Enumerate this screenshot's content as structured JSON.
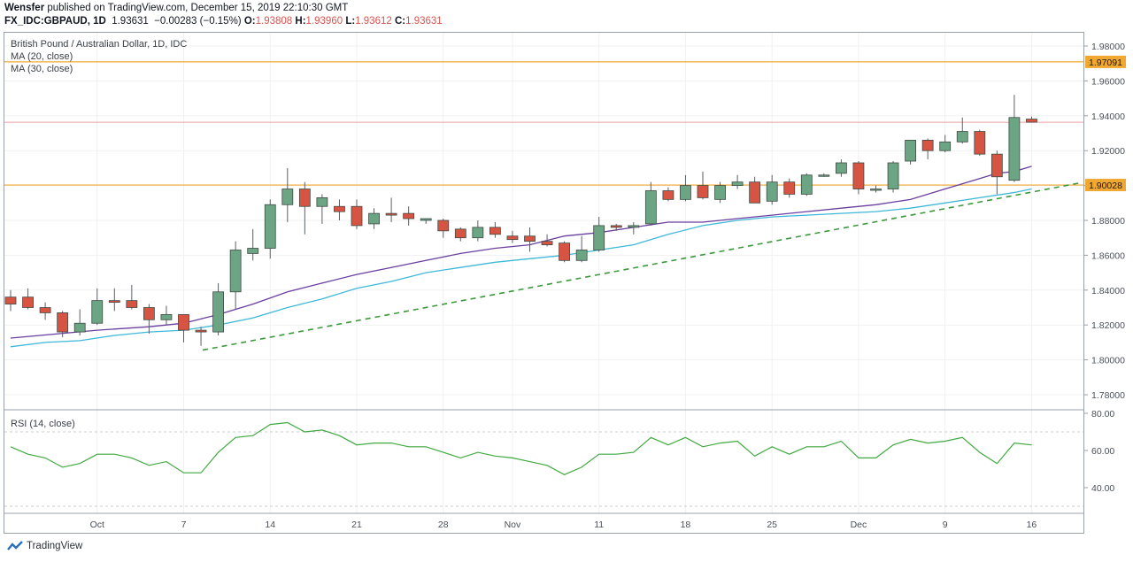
{
  "header": {
    "author": "Wensfer",
    "published": "published on TradingView.com, December 15, 2019 22:10:30 GMT",
    "symbol": "FX_IDC:GBPAUD, 1D",
    "last": "1.93631",
    "change": "−0.00283 (−0.15%)",
    "o_label": "O:",
    "o_value": "1.93808",
    "h_label": "H:",
    "h_value": "1.93960",
    "l_label": "L:",
    "l_value": "1.93612",
    "c_label": "C:",
    "c_value": "1.93631"
  },
  "legend": {
    "title": "British Pound / Australian Dollar, 1D, IDC",
    "ma20": "MA (20, close)",
    "ma30": "MA (30, close)",
    "rsi": "RSI (14, close)"
  },
  "footer": {
    "brand": "TradingView"
  },
  "colors": {
    "up": "#6ba583",
    "down": "#d75442",
    "ma20": "#6a3fa0",
    "ma30": "#3fb8d8",
    "trend": "#3a9a3a",
    "hline": "#f0a830",
    "rsi": "#3fa93f",
    "last": "#e8a0a0"
  },
  "chart_data": [
    {
      "type": "candlestick",
      "title": "British Pound / Australian Dollar, 1D, IDC",
      "x_ticks": [
        "Oct",
        "7",
        "14",
        "21",
        "28",
        "Nov",
        "11",
        "18",
        "25",
        "Dec",
        "9",
        "16"
      ],
      "x_tick_index": [
        5,
        10,
        15,
        20,
        25,
        29,
        34,
        39,
        44,
        49,
        54,
        59
      ],
      "y_ticks": [
        "1.98000",
        "1.96000",
        "1.94000",
        "1.92000",
        "1.90000",
        "1.88000",
        "1.86000",
        "1.84000",
        "1.82000",
        "1.80000",
        "1.78000"
      ],
      "ylim": [
        1.772,
        1.988
      ],
      "horizontal_lines": [
        {
          "value": 1.97091,
          "label": "1.97091"
        },
        {
          "value": 1.90028,
          "label": "1.90028"
        }
      ],
      "last_price_line": 1.93631,
      "trendline": {
        "from": {
          "i": 11.1,
          "v": 1.8056
        },
        "to": {
          "i": 61.8,
          "v": 1.9015
        }
      },
      "ohlc": [
        [
          1.836,
          1.84,
          1.828,
          1.832
        ],
        [
          1.836,
          1.841,
          1.829,
          1.83
        ],
        [
          1.83,
          1.833,
          1.823,
          1.827
        ],
        [
          1.827,
          1.828,
          1.813,
          1.816
        ],
        [
          1.816,
          1.829,
          1.814,
          1.821
        ],
        [
          1.821,
          1.841,
          1.82,
          1.834
        ],
        [
          1.834,
          1.841,
          1.828,
          1.833
        ],
        [
          1.834,
          1.843,
          1.829,
          1.83
        ],
        [
          1.83,
          1.832,
          1.815,
          1.823
        ],
        [
          1.823,
          1.831,
          1.82,
          1.826
        ],
        [
          1.826,
          1.826,
          1.81,
          1.817
        ],
        [
          1.817,
          1.819,
          1.808,
          1.816
        ],
        [
          1.816,
          1.844,
          1.814,
          1.839
        ],
        [
          1.839,
          1.868,
          1.829,
          1.863
        ],
        [
          1.861,
          1.875,
          1.857,
          1.864
        ],
        [
          1.864,
          1.892,
          1.858,
          1.889
        ],
        [
          1.889,
          1.91,
          1.879,
          1.898
        ],
        [
          1.898,
          1.902,
          1.872,
          1.888
        ],
        [
          1.888,
          1.895,
          1.878,
          1.893
        ],
        [
          1.888,
          1.892,
          1.88,
          1.885
        ],
        [
          1.888,
          1.892,
          1.875,
          1.877
        ],
        [
          1.878,
          1.887,
          1.875,
          1.884
        ],
        [
          1.884,
          1.893,
          1.879,
          1.883
        ],
        [
          1.884,
          1.888,
          1.877,
          1.881
        ],
        [
          1.88,
          1.881,
          1.878,
          1.881
        ],
        [
          1.88,
          1.881,
          1.87,
          1.874
        ],
        [
          1.875,
          1.876,
          1.868,
          1.87
        ],
        [
          1.87,
          1.88,
          1.868,
          1.876
        ],
        [
          1.876,
          1.879,
          1.87,
          1.872
        ],
        [
          1.871,
          1.874,
          1.867,
          1.869
        ],
        [
          1.871,
          1.876,
          1.862,
          1.868
        ],
        [
          1.868,
          1.872,
          1.865,
          1.866
        ],
        [
          1.867,
          1.868,
          1.856,
          1.857
        ],
        [
          1.857,
          1.871,
          1.856,
          1.863
        ],
        [
          1.863,
          1.882,
          1.862,
          1.877
        ],
        [
          1.877,
          1.878,
          1.874,
          1.876
        ],
        [
          1.876,
          1.879,
          1.872,
          1.877
        ],
        [
          1.878,
          1.902,
          1.877,
          1.897
        ],
        [
          1.897,
          1.899,
          1.891,
          1.892
        ],
        [
          1.892,
          1.906,
          1.891,
          1.9
        ],
        [
          1.9,
          1.908,
          1.892,
          1.893
        ],
        [
          1.892,
          1.902,
          1.89,
          1.9
        ],
        [
          1.9,
          1.906,
          1.898,
          1.902
        ],
        [
          1.902,
          1.905,
          1.891,
          1.89
        ],
        [
          1.891,
          1.906,
          1.889,
          1.902
        ],
        [
          1.902,
          1.904,
          1.893,
          1.895
        ],
        [
          1.895,
          1.907,
          1.894,
          1.906
        ],
        [
          1.906,
          1.907,
          1.905,
          1.906
        ],
        [
          1.907,
          1.915,
          1.905,
          1.913
        ],
        [
          1.913,
          1.914,
          1.895,
          1.898
        ],
        [
          1.898,
          1.9,
          1.896,
          1.898
        ],
        [
          1.898,
          1.914,
          1.896,
          1.913
        ],
        [
          1.914,
          1.926,
          1.912,
          1.926
        ],
        [
          1.926,
          1.927,
          1.915,
          1.92
        ],
        [
          1.92,
          1.929,
          1.919,
          1.925
        ],
        [
          1.925,
          1.939,
          1.924,
          1.931
        ],
        [
          1.931,
          1.932,
          1.917,
          1.918
        ],
        [
          1.918,
          1.92,
          1.895,
          1.905
        ],
        [
          1.903,
          1.952,
          1.902,
          1.939
        ],
        [
          1.93808,
          1.9396,
          1.93612,
          1.93631
        ]
      ],
      "ma20": [
        [
          0,
          1.8125
        ],
        [
          5,
          1.817
        ],
        [
          8,
          1.819
        ],
        [
          10,
          1.821
        ],
        [
          12,
          1.826
        ],
        [
          14,
          1.832
        ],
        [
          16,
          1.839
        ],
        [
          18,
          1.844
        ],
        [
          20,
          1.849
        ],
        [
          22,
          1.853
        ],
        [
          24,
          1.857
        ],
        [
          26,
          1.861
        ],
        [
          28,
          1.864
        ],
        [
          30,
          1.866
        ],
        [
          32,
          1.871
        ],
        [
          34,
          1.873
        ],
        [
          36,
          1.876
        ],
        [
          38,
          1.879
        ],
        [
          40,
          1.879
        ],
        [
          42,
          1.881
        ],
        [
          44,
          1.883
        ],
        [
          46,
          1.885
        ],
        [
          48,
          1.887
        ],
        [
          50,
          1.889
        ],
        [
          52,
          1.892
        ],
        [
          54,
          1.898
        ],
        [
          56,
          1.904
        ],
        [
          57,
          1.907
        ],
        [
          58,
          1.908
        ],
        [
          59,
          1.911
        ]
      ],
      "ma30": [
        [
          0,
          1.8075
        ],
        [
          2,
          1.81
        ],
        [
          4,
          1.811
        ],
        [
          6,
          1.814
        ],
        [
          8,
          1.816
        ],
        [
          10,
          1.817
        ],
        [
          12,
          1.82
        ],
        [
          14,
          1.824
        ],
        [
          16,
          1.83
        ],
        [
          18,
          1.835
        ],
        [
          20,
          1.841
        ],
        [
          22,
          1.845
        ],
        [
          24,
          1.85
        ],
        [
          26,
          1.853
        ],
        [
          28,
          1.856
        ],
        [
          30,
          1.858
        ],
        [
          32,
          1.86
        ],
        [
          34,
          1.863
        ],
        [
          36,
          1.866
        ],
        [
          38,
          1.872
        ],
        [
          40,
          1.877
        ],
        [
          42,
          1.88
        ],
        [
          44,
          1.882
        ],
        [
          46,
          1.883
        ],
        [
          48,
          1.884
        ],
        [
          50,
          1.885
        ],
        [
          52,
          1.887
        ],
        [
          54,
          1.89
        ],
        [
          56,
          1.893
        ],
        [
          58,
          1.896
        ],
        [
          59,
          1.898
        ]
      ]
    },
    {
      "type": "line",
      "title": "RSI (14, close)",
      "y_ticks": [
        "80.00",
        "60.00",
        "40.00"
      ],
      "ylim": [
        32,
        80
      ],
      "dashed_levels": [
        70,
        30
      ],
      "x_index": [
        0,
        1,
        2,
        3,
        4,
        5,
        6,
        7,
        8,
        9,
        10,
        11,
        12,
        13,
        14,
        15,
        16,
        17,
        18,
        19,
        20,
        21,
        22,
        23,
        24,
        25,
        26,
        27,
        28,
        29,
        30,
        31,
        32,
        33,
        34,
        35,
        36,
        37,
        38,
        39,
        40,
        41,
        42,
        43,
        44,
        45,
        46,
        47,
        48,
        49,
        50,
        51,
        52,
        53,
        54,
        55,
        56,
        57,
        58,
        59
      ],
      "values": [
        62,
        58,
        56,
        51,
        53,
        58,
        58,
        56,
        52,
        54,
        48,
        48,
        59,
        67,
        68,
        74,
        75,
        70,
        71,
        68,
        63,
        64,
        64,
        62,
        62,
        59,
        56,
        59,
        57,
        56,
        54,
        52,
        47,
        51,
        58,
        58,
        59,
        67,
        63,
        67,
        62,
        64,
        65,
        57,
        62,
        58,
        62,
        62,
        65,
        56,
        56,
        63,
        66,
        64,
        65,
        67,
        59,
        53,
        64,
        63
      ]
    }
  ]
}
